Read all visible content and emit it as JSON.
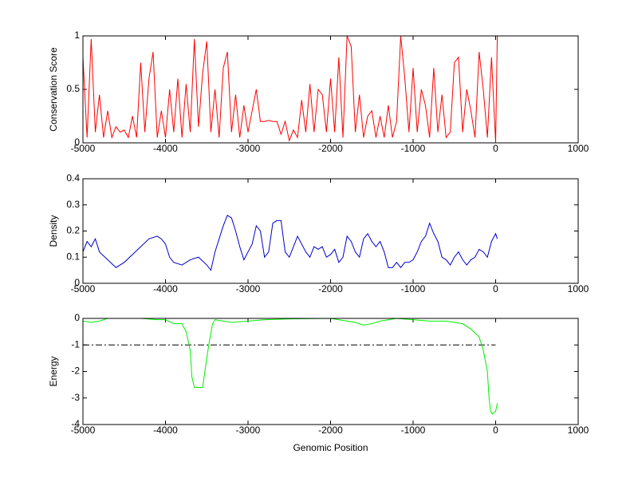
{
  "chart_data": [
    {
      "type": "line",
      "y_label": "Conservation Score",
      "color": "#ff0000",
      "x": [
        -5000,
        -4950,
        -4900,
        -4850,
        -4800,
        -4750,
        -4700,
        -4650,
        -4600,
        -4550,
        -4500,
        -4450,
        -4400,
        -4350,
        -4300,
        -4250,
        -4200,
        -4150,
        -4100,
        -4050,
        -4000,
        -3950,
        -3900,
        -3850,
        -3800,
        -3750,
        -3700,
        -3650,
        -3600,
        -3550,
        -3500,
        -3450,
        -3400,
        -3350,
        -3300,
        -3250,
        -3200,
        -3150,
        -3100,
        -3050,
        -3000,
        -2950,
        -2900,
        -2850,
        -2800,
        -2750,
        -2700,
        -2650,
        -2600,
        -2550,
        -2500,
        -2450,
        -2400,
        -2350,
        -2300,
        -2250,
        -2200,
        -2150,
        -2100,
        -2050,
        -2000,
        -1950,
        -1900,
        -1850,
        -1800,
        -1750,
        -1700,
        -1650,
        -1600,
        -1550,
        -1500,
        -1450,
        -1400,
        -1350,
        -1300,
        -1250,
        -1200,
        -1150,
        -1100,
        -1050,
        -1000,
        -950,
        -900,
        -850,
        -800,
        -750,
        -700,
        -650,
        -600,
        -550,
        -500,
        -450,
        -400,
        -350,
        -300,
        -250,
        -200,
        -150,
        -100,
        -50,
        0,
        20,
        30
      ],
      "values": [
        0.8,
        0.05,
        0.97,
        0.1,
        0.45,
        0.05,
        0.3,
        0.05,
        0.15,
        0.1,
        0.12,
        0.05,
        0.25,
        0.05,
        0.75,
        0.1,
        0.6,
        0.85,
        0.05,
        0.3,
        0.05,
        0.5,
        0.1,
        0.6,
        0.05,
        0.55,
        0.1,
        0.97,
        0.15,
        0.65,
        0.95,
        0.1,
        0.5,
        0.05,
        0.7,
        0.85,
        0.1,
        0.45,
        0.05,
        0.35,
        0.1,
        0.3,
        0.5,
        0.2,
        0.2,
        0.21,
        0.2,
        0.2,
        0.08,
        0.2,
        0.02,
        0.12,
        0.05,
        0.4,
        0.1,
        0.55,
        0.1,
        0.5,
        0.45,
        0.1,
        0.6,
        0.1,
        0.8,
        0.05,
        1,
        0.9,
        0.1,
        0.45,
        0.05,
        0.25,
        0.3,
        0.05,
        0.25,
        0.05,
        0.35,
        0.05,
        0.2,
        1,
        0.6,
        0.1,
        0.7,
        0.1,
        0.5,
        0.35,
        0.05,
        0.7,
        0.1,
        0.45,
        0.05,
        0.1,
        0.75,
        0.8,
        0.1,
        0.5,
        0.3,
        0.05,
        0.85,
        0.5,
        0.05,
        0.8,
        0,
        1,
        1
      ],
      "xlim": [
        -5000,
        1000
      ],
      "xticks": [
        -5000,
        -4000,
        -3000,
        -2000,
        -1000,
        0,
        1000
      ],
      "ylim": [
        0,
        1
      ],
      "yticks": [
        0,
        0.5,
        1
      ]
    },
    {
      "type": "line",
      "y_label": "Density",
      "color": "#0000cc",
      "x": [
        -5000,
        -4950,
        -4900,
        -4850,
        -4800,
        -4700,
        -4600,
        -4500,
        -4400,
        -4300,
        -4200,
        -4100,
        -4050,
        -4000,
        -3950,
        -3900,
        -3800,
        -3700,
        -3600,
        -3500,
        -3450,
        -3400,
        -3300,
        -3250,
        -3200,
        -3150,
        -3100,
        -3050,
        -3000,
        -2950,
        -2900,
        -2850,
        -2800,
        -2750,
        -2700,
        -2650,
        -2600,
        -2550,
        -2500,
        -2450,
        -2400,
        -2350,
        -2300,
        -2250,
        -2200,
        -2150,
        -2100,
        -2050,
        -2000,
        -1950,
        -1900,
        -1850,
        -1800,
        -1750,
        -1700,
        -1650,
        -1600,
        -1550,
        -1500,
        -1450,
        -1400,
        -1350,
        -1300,
        -1250,
        -1200,
        -1150,
        -1100,
        -1050,
        -1000,
        -950,
        -900,
        -850,
        -800,
        -750,
        -700,
        -650,
        -600,
        -550,
        -500,
        -450,
        -400,
        -350,
        -300,
        -250,
        -200,
        -150,
        -100,
        -50,
        0,
        20
      ],
      "values": [
        0.12,
        0.16,
        0.14,
        0.17,
        0.12,
        0.09,
        0.06,
        0.08,
        0.11,
        0.14,
        0.17,
        0.18,
        0.17,
        0.15,
        0.1,
        0.08,
        0.07,
        0.09,
        0.1,
        0.07,
        0.05,
        0.12,
        0.22,
        0.26,
        0.25,
        0.2,
        0.14,
        0.09,
        0.12,
        0.15,
        0.22,
        0.2,
        0.1,
        0.12,
        0.23,
        0.24,
        0.24,
        0.12,
        0.1,
        0.14,
        0.18,
        0.15,
        0.12,
        0.1,
        0.14,
        0.13,
        0.14,
        0.1,
        0.11,
        0.13,
        0.08,
        0.1,
        0.18,
        0.16,
        0.12,
        0.1,
        0.17,
        0.19,
        0.16,
        0.14,
        0.16,
        0.12,
        0.06,
        0.06,
        0.08,
        0.06,
        0.08,
        0.08,
        0.09,
        0.12,
        0.16,
        0.18,
        0.23,
        0.19,
        0.16,
        0.1,
        0.09,
        0.07,
        0.1,
        0.12,
        0.09,
        0.07,
        0.09,
        0.1,
        0.13,
        0.12,
        0.1,
        0.16,
        0.19,
        0.17
      ],
      "xlim": [
        -5000,
        1000
      ],
      "xticks": [
        -5000,
        -4000,
        -3000,
        -2000,
        -1000,
        0,
        1000
      ],
      "ylim": [
        0,
        0.4
      ],
      "yticks": [
        0,
        0.1,
        0.2,
        0.3,
        0.4
      ]
    },
    {
      "type": "line",
      "y_label": "Energy",
      "x_label": "Genomic Position",
      "color": "#00ee00",
      "x": [
        -5000,
        -4900,
        -4800,
        -4700,
        -4500,
        -4300,
        -4100,
        -4000,
        -3900,
        -3800,
        -3750,
        -3700,
        -3680,
        -3650,
        -3550,
        -3500,
        -3470,
        -3430,
        -3400,
        -3300,
        -3200,
        -3000,
        -2800,
        -2500,
        -2000,
        -1800,
        -1700,
        -1600,
        -1500,
        -1400,
        -1200,
        -1000,
        -800,
        -600,
        -400,
        -300,
        -200,
        -150,
        -100,
        -80,
        -60,
        -40,
        0,
        20
      ],
      "values": [
        -0.1,
        -0.15,
        -0.1,
        0,
        0,
        0,
        -0.05,
        -0.05,
        -0.2,
        -0.2,
        -0.5,
        -1.2,
        -2.2,
        -2.6,
        -2.6,
        -1.5,
        -0.9,
        -0.2,
        -0.05,
        -0.1,
        -0.15,
        -0.1,
        -0.05,
        -0.02,
        0,
        -0.1,
        -0.15,
        -0.25,
        -0.2,
        -0.1,
        0,
        -0.05,
        -0.1,
        -0.1,
        -0.2,
        -0.4,
        -0.7,
        -1.2,
        -2,
        -3,
        -3.5,
        -3.6,
        -3.5,
        -3.2
      ],
      "reference_line": {
        "y": -1,
        "x": [
          -5000,
          0
        ],
        "color": "#000000",
        "style": "dashdot"
      },
      "xlim": [
        -5000,
        1000
      ],
      "xticks": [
        -5000,
        -4000,
        -3000,
        -2000,
        -1000,
        0,
        1000
      ],
      "ylim": [
        -4,
        0
      ],
      "yticks": [
        -4,
        -3,
        -2,
        -1,
        0
      ]
    }
  ]
}
